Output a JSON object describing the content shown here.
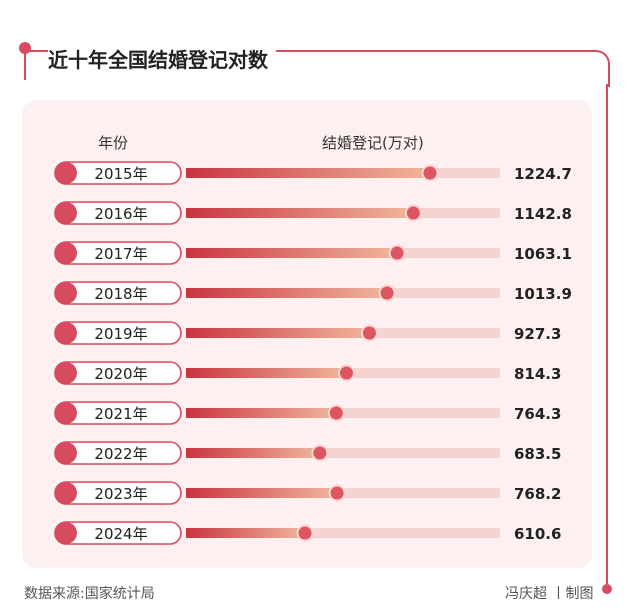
{
  "title": "近十年全国结婚登记对数",
  "source": "数据来源:国家统计局",
  "credit": "冯庆超 丨制图",
  "colors": {
    "accent": "#d64b5f",
    "panel": "#fcf1f0",
    "track": "#f5d3cf",
    "gradient_start": "#c9343f",
    "gradient_end": "#f0b79c"
  },
  "chart_data": {
    "type": "bar",
    "column_headers": {
      "category": "年份",
      "value": "结婚登记(万对)"
    },
    "categories": [
      "2015年",
      "2016年",
      "2017年",
      "2018年",
      "2019年",
      "2020年",
      "2021年",
      "2022年",
      "2023年",
      "2024年"
    ],
    "values": [
      1224.7,
      1142.8,
      1063.1,
      1013.9,
      927.3,
      814.3,
      764.3,
      683.5,
      768.2,
      610.6
    ],
    "value_labels": [
      "1224.7",
      "1142.8",
      "1063.1",
      "1013.9",
      "927.3",
      "814.3",
      "764.3",
      "683.5",
      "768.2",
      "610.6"
    ],
    "orientation": "horizontal",
    "legend": "none",
    "grid": false
  }
}
